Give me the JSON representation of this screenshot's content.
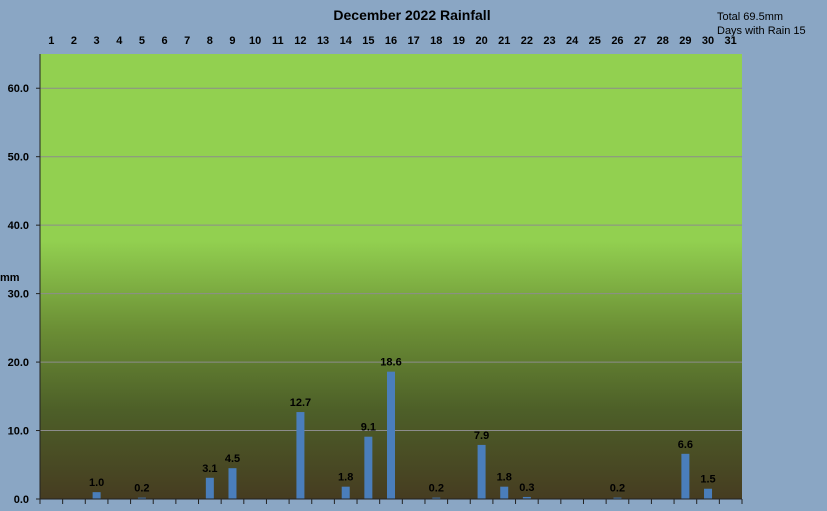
{
  "chart_data": {
    "type": "bar",
    "title": "December 2022 Rainfall",
    "ylabel": "mm",
    "xlabel": "",
    "categories": [
      "1",
      "2",
      "3",
      "4",
      "5",
      "6",
      "7",
      "8",
      "9",
      "10",
      "11",
      "12",
      "13",
      "14",
      "15",
      "16",
      "17",
      "18",
      "19",
      "20",
      "21",
      "22",
      "23",
      "24",
      "25",
      "26",
      "27",
      "28",
      "29",
      "30",
      "31"
    ],
    "values": [
      0,
      0,
      1.0,
      0,
      0.2,
      0,
      0,
      3.1,
      4.5,
      0,
      0,
      12.7,
      0,
      1.8,
      9.1,
      18.6,
      0,
      0.2,
      0,
      7.9,
      1.8,
      0.3,
      0,
      0,
      0,
      0.2,
      0,
      0,
      6.6,
      1.5,
      0
    ],
    "value_labels": [
      "",
      "",
      "1.0",
      "",
      "0.2",
      "",
      "",
      "3.1",
      "4.5",
      "",
      "",
      "12.7",
      "",
      "1.8",
      "9.1",
      "18.6",
      "",
      "0.2",
      "",
      "7.9",
      "1.8",
      "0.3",
      "",
      "",
      "",
      "0.2",
      "",
      "",
      "6.6",
      "1.5",
      ""
    ],
    "ylim": [
      0,
      65
    ],
    "yticks": [
      "0.0",
      "10.0",
      "20.0",
      "30.0",
      "40.0",
      "50.0",
      "60.0"
    ],
    "ytick_values": [
      0,
      10,
      20,
      30,
      40,
      50,
      60
    ],
    "grid": true,
    "x_labels_position": "top",
    "bar_color": "#4a7ebb"
  },
  "summary": {
    "total": "Total 69.5mm",
    "days_with_rain": "Days with Rain 15"
  }
}
